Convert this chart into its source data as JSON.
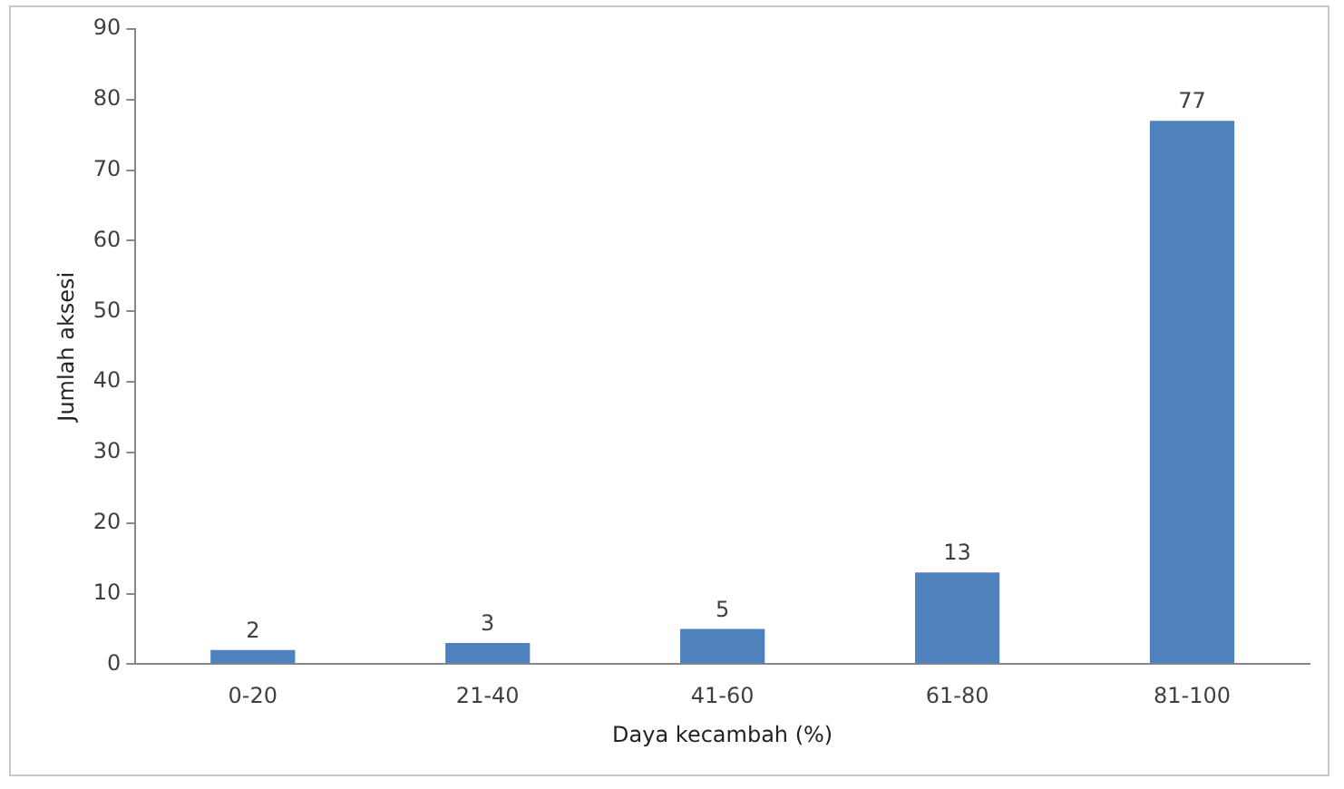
{
  "chart_data": {
    "type": "bar",
    "xlabel": "Daya kecambah (%)",
    "ylabel": "Jumlah aksesi",
    "categories": [
      "0-20",
      "21-40",
      "41-60",
      "61-80",
      "81-100"
    ],
    "values": [
      2,
      3,
      5,
      13,
      77
    ],
    "color": "#4f81bd",
    "ylim": [
      0,
      90
    ],
    "yticks": [
      0,
      10,
      20,
      30,
      40,
      50,
      60,
      70,
      80,
      90
    ],
    "grid": false,
    "legend": false,
    "data_labels": true
  }
}
